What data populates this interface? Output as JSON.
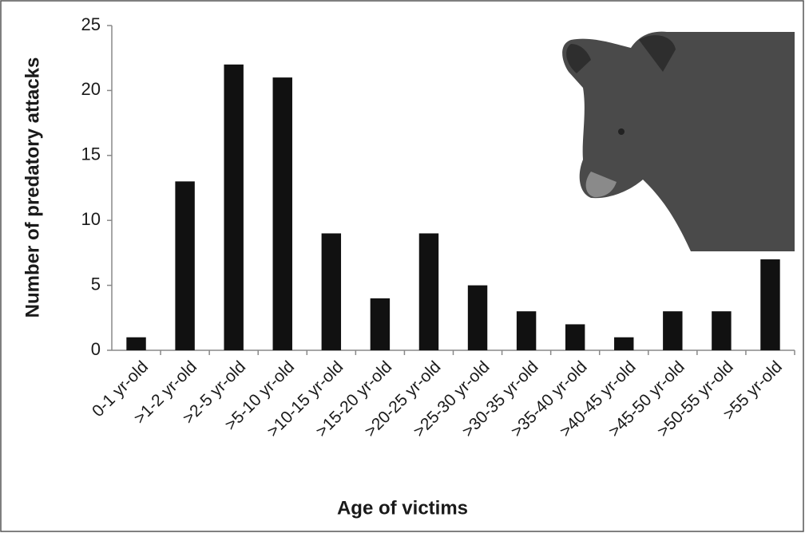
{
  "chart_data": {
    "type": "bar",
    "x_label": "Age of victims",
    "y_label": "Number of predatory attacks",
    "categories": [
      "0-1 yr-old",
      ">1-2 yr-old",
      ">2-5 yr-old",
      ">5-10 yr-old",
      ">10-15 yr-old",
      ">15-20 yr-old",
      ">20-25 yr-old",
      ">25-30 yr-old",
      ">30-35 yr-old",
      ">35-40 yr-old",
      ">40-45 yr-old",
      ">45-50 yr-old",
      ">50-55 yr-old",
      ">55 yr-old"
    ],
    "values": [
      1,
      13,
      22,
      21,
      9,
      4,
      9,
      5,
      3,
      2,
      1,
      3,
      3,
      7
    ],
    "color": "#111111",
    "ylim": [
      0,
      25
    ],
    "yticks": [
      0,
      5,
      10,
      15,
      20,
      25
    ],
    "grid": false
  }
}
